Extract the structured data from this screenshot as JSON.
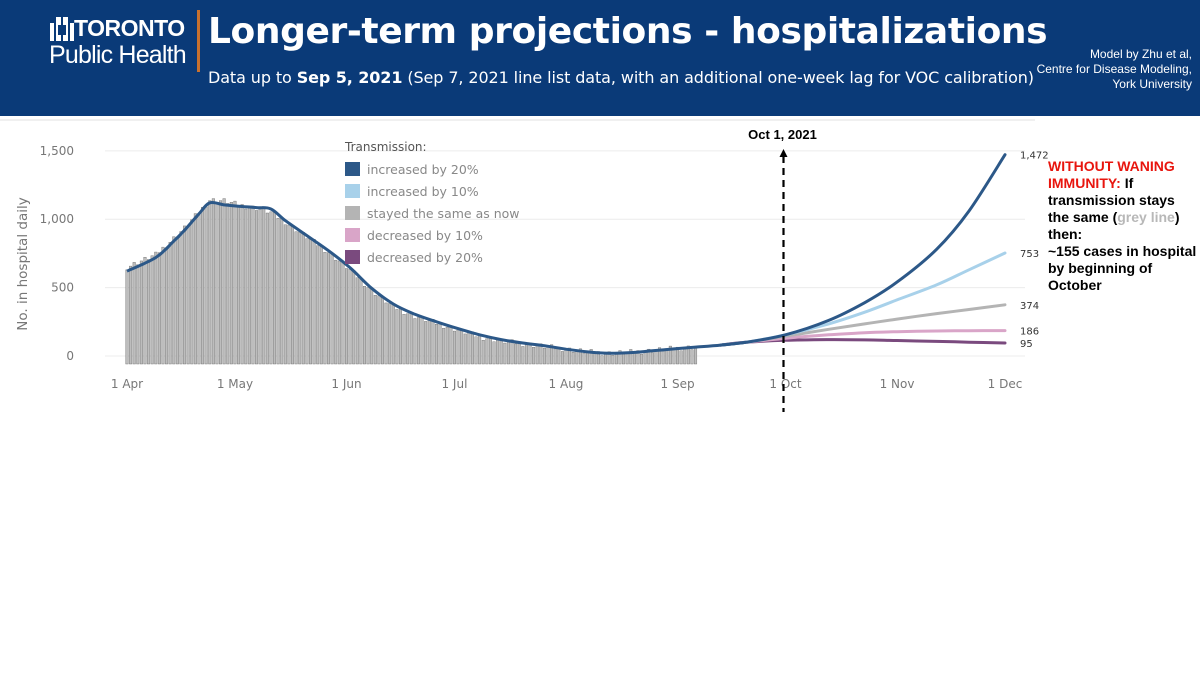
{
  "header": {
    "logo_top": "TORONTO",
    "logo_bottom": "Public Health",
    "title": "Longer-term projections - hospitalizations",
    "subtitle_prefix": "Data up to ",
    "subtitle_bold": "Sep 5, 2021",
    "subtitle_suffix": " (Sep 7, 2021 line list data, with an additional one-week lag for VOC calibration)",
    "credit": [
      "Model by Zhu et al,",
      "Centre for Disease Modeling,",
      "York University"
    ],
    "colors": {
      "banner": "#0a3a78",
      "divider": "#c8712f"
    }
  },
  "note": {
    "red": "WITHOUT WANING IMMUNITY:",
    "part1": " If transmission stays the same (",
    "grey": "grey line",
    "part2": ") then:",
    "part3": " ~155 cases in hospital by beginning of October"
  },
  "chart_data": {
    "type": "line",
    "ylabel": "No. in hospital daily",
    "y_ticks": [
      0,
      500,
      1000,
      1500
    ],
    "y_tick_labels": [
      "0",
      "500",
      "1,000",
      "1,500"
    ],
    "ylim": [
      0,
      1550
    ],
    "x_ticks": [
      "1 Apr",
      "1 May",
      "1 Jun",
      "1 Jul",
      "1 Aug",
      "1 Sep",
      "1 Oct",
      "1 Nov",
      "1 Dec"
    ],
    "x_range_days": [
      0,
      244
    ],
    "marker": {
      "day": 183,
      "label": "Oct 1, 2021"
    },
    "legend_title": "Transmission:",
    "legend_position": "top-left",
    "grid": true,
    "observed": {
      "type": "bar",
      "anchors_day_value": [
        [
          0,
          650
        ],
        [
          8,
          740
        ],
        [
          13,
          860
        ],
        [
          16,
          935
        ],
        [
          20,
          1050
        ],
        [
          23,
          1140
        ],
        [
          27,
          1135
        ],
        [
          31,
          1105
        ],
        [
          36,
          1080
        ],
        [
          40,
          1050
        ],
        [
          44,
          980
        ],
        [
          50,
          870
        ],
        [
          56,
          760
        ],
        [
          62,
          630
        ],
        [
          68,
          480
        ],
        [
          74,
          360
        ],
        [
          80,
          290
        ],
        [
          86,
          240
        ],
        [
          92,
          190
        ],
        [
          98,
          140
        ],
        [
          104,
          110
        ],
        [
          110,
          90
        ],
        [
          116,
          70
        ],
        [
          122,
          50
        ],
        [
          128,
          30
        ],
        [
          134,
          20
        ],
        [
          140,
          28
        ],
        [
          146,
          40
        ],
        [
          152,
          55
        ],
        [
          158,
          65
        ]
      ]
    },
    "fitted": {
      "color": "#2c5888",
      "anchors_day_value": [
        [
          0,
          620
        ],
        [
          8,
          720
        ],
        [
          13,
          840
        ],
        [
          16,
          920
        ],
        [
          20,
          1040
        ],
        [
          23,
          1120
        ],
        [
          27,
          1105
        ],
        [
          31,
          1095
        ],
        [
          36,
          1085
        ],
        [
          40,
          1075
        ],
        [
          44,
          990
        ],
        [
          50,
          880
        ],
        [
          56,
          770
        ],
        [
          62,
          645
        ],
        [
          68,
          495
        ],
        [
          74,
          380
        ],
        [
          80,
          305
        ],
        [
          86,
          250
        ],
        [
          92,
          200
        ],
        [
          98,
          155
        ],
        [
          104,
          120
        ],
        [
          110,
          95
        ],
        [
          116,
          75
        ],
        [
          122,
          50
        ],
        [
          128,
          30
        ],
        [
          134,
          20
        ],
        [
          140,
          25
        ],
        [
          146,
          38
        ],
        [
          152,
          52
        ],
        [
          158,
          65
        ],
        [
          165,
          80
        ],
        [
          172,
          100
        ]
      ]
    },
    "series": [
      {
        "name": "increased by 20%",
        "color": "#2c5888",
        "end_label": "1,472",
        "anchors_day_value": [
          [
            165,
            80
          ],
          [
            172,
            100
          ],
          [
            183,
            155
          ],
          [
            195,
            260
          ],
          [
            205,
            390
          ],
          [
            214,
            540
          ],
          [
            225,
            780
          ],
          [
            234,
            1060
          ],
          [
            244,
            1472
          ]
        ]
      },
      {
        "name": "increased by 10%",
        "color": "#a8d1ea",
        "end_label": "753",
        "anchors_day_value": [
          [
            165,
            80
          ],
          [
            172,
            100
          ],
          [
            183,
            155
          ],
          [
            195,
            235
          ],
          [
            205,
            320
          ],
          [
            214,
            410
          ],
          [
            225,
            520
          ],
          [
            234,
            630
          ],
          [
            244,
            753
          ]
        ]
      },
      {
        "name": "stayed the same as now",
        "color": "#b4b4b4",
        "end_label": "374",
        "anchors_day_value": [
          [
            165,
            80
          ],
          [
            172,
            100
          ],
          [
            183,
            145
          ],
          [
            195,
            195
          ],
          [
            205,
            235
          ],
          [
            214,
            270
          ],
          [
            225,
            310
          ],
          [
            234,
            340
          ],
          [
            244,
            374
          ]
        ]
      },
      {
        "name": "decreased by 10%",
        "color": "#d9a5c8",
        "end_label": "186",
        "anchors_day_value": [
          [
            165,
            80
          ],
          [
            172,
            100
          ],
          [
            183,
            130
          ],
          [
            195,
            155
          ],
          [
            205,
            170
          ],
          [
            214,
            178
          ],
          [
            225,
            183
          ],
          [
            234,
            185
          ],
          [
            244,
            186
          ]
        ]
      },
      {
        "name": "decreased by 20%",
        "color": "#7a4a7e",
        "end_label": "95",
        "anchors_day_value": [
          [
            165,
            80
          ],
          [
            172,
            100
          ],
          [
            183,
            115
          ],
          [
            195,
            120
          ],
          [
            205,
            118
          ],
          [
            214,
            113
          ],
          [
            225,
            107
          ],
          [
            234,
            101
          ],
          [
            244,
            95
          ]
        ]
      }
    ]
  }
}
